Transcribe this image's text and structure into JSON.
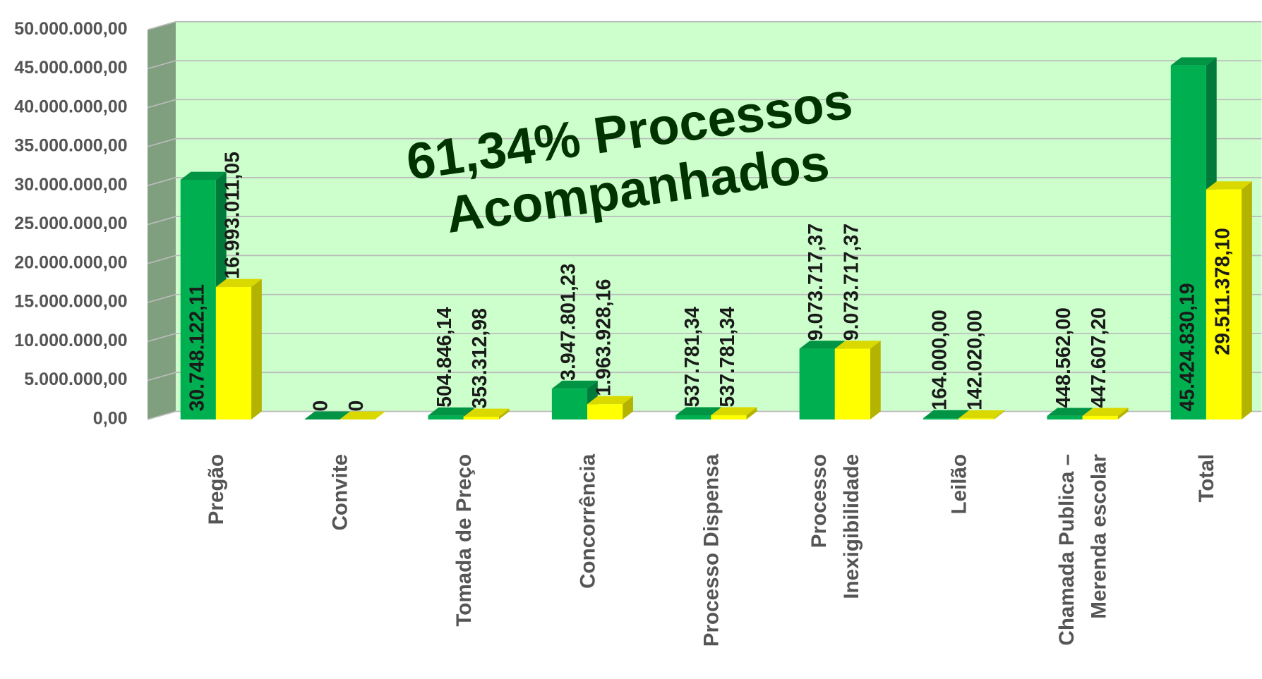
{
  "chart_data": {
    "type": "bar3d",
    "annotation": [
      "61,34% Processos",
      "Acompanhados"
    ],
    "categories": [
      "Pregão",
      "Convite",
      "Tomada de Preço",
      "Concorrência",
      "Processo Dispensa",
      "Processo\nInexigibilidade",
      "Leilão",
      "Chamada Publica –\nMerenda escolar",
      "Total"
    ],
    "series": [
      {
        "color": "#00b050",
        "side": "#007a3a",
        "top": "#009444",
        "values": [
          30748122.11,
          0,
          504846.14,
          3947801.23,
          537781.34,
          9073717.37,
          164000,
          448562,
          45424830.19
        ],
        "value_labels": [
          "30.748.122,11",
          "0",
          "504.846,14",
          "3.947.801,23",
          "537.781,34",
          "9.073.717,37",
          "164.000,00",
          "448.562,00",
          "45.424.830,19"
        ]
      },
      {
        "color": "#ffff00",
        "side": "#b3b300",
        "top": "#d9d900",
        "values": [
          16993011.05,
          0,
          353312.98,
          1963928.16,
          537781.34,
          9073717.37,
          142020,
          447607.2,
          29511378.1
        ],
        "value_labels": [
          "16.993.011,05",
          "0",
          "353.312,98",
          "1.963.928,16",
          "537.781,34",
          "9.073.717,37",
          "142.020,00",
          "447.607,20",
          "29.511.378,10"
        ]
      }
    ],
    "ylim": [
      0,
      50000000
    ],
    "yticks": [
      {
        "value": 0,
        "label": "0,00"
      },
      {
        "value": 5000000,
        "label": "5.000.000,00"
      },
      {
        "value": 10000000,
        "label": "10.000.000,00"
      },
      {
        "value": 15000000,
        "label": "15.000.000,00"
      },
      {
        "value": 20000000,
        "label": "20.000.000,00"
      },
      {
        "value": 25000000,
        "label": "25.000.000,00"
      },
      {
        "value": 30000000,
        "label": "30.000.000,00"
      },
      {
        "value": 35000000,
        "label": "35.000.000,00"
      },
      {
        "value": 40000000,
        "label": "40.000.000,00"
      },
      {
        "value": 45000000,
        "label": "45.000.000,00"
      },
      {
        "value": 50000000,
        "label": "50.000.000,00"
      }
    ],
    "grid": true,
    "wall_color": "#ccffcc",
    "side_wall_color": "#7f9f7f"
  }
}
